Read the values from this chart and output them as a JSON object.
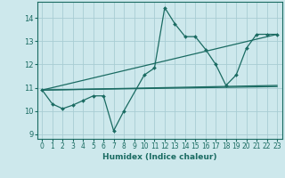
{
  "xlabel": "Humidex (Indice chaleur)",
  "xlim": [
    -0.5,
    23.5
  ],
  "ylim": [
    8.8,
    14.7
  ],
  "yticks": [
    9,
    10,
    11,
    12,
    13,
    14
  ],
  "xticks": [
    0,
    1,
    2,
    3,
    4,
    5,
    6,
    7,
    8,
    9,
    10,
    11,
    12,
    13,
    14,
    15,
    16,
    17,
    18,
    19,
    20,
    21,
    22,
    23
  ],
  "bg_color": "#cde8ec",
  "line_color": "#1a6b62",
  "grid_color": "#a8cdd3",
  "line_main": {
    "x": [
      0,
      1,
      2,
      3,
      4,
      5,
      6,
      7,
      8,
      10,
      11,
      12,
      13,
      14,
      15,
      16,
      17,
      18,
      19,
      20,
      21,
      22,
      23
    ],
    "y": [
      10.9,
      10.3,
      10.1,
      10.25,
      10.45,
      10.65,
      10.65,
      9.15,
      10.0,
      11.55,
      11.85,
      14.45,
      13.75,
      13.2,
      13.2,
      12.65,
      12.0,
      11.1,
      11.55,
      12.7,
      13.3,
      13.3,
      13.3
    ]
  },
  "line_straight1": {
    "x": [
      0,
      23
    ],
    "y": [
      10.9,
      13.3
    ]
  },
  "line_straight2": {
    "x": [
      0,
      23
    ],
    "y": [
      10.9,
      11.1
    ]
  },
  "line_straight3": {
    "x": [
      0,
      23
    ],
    "y": [
      10.9,
      11.05
    ]
  }
}
